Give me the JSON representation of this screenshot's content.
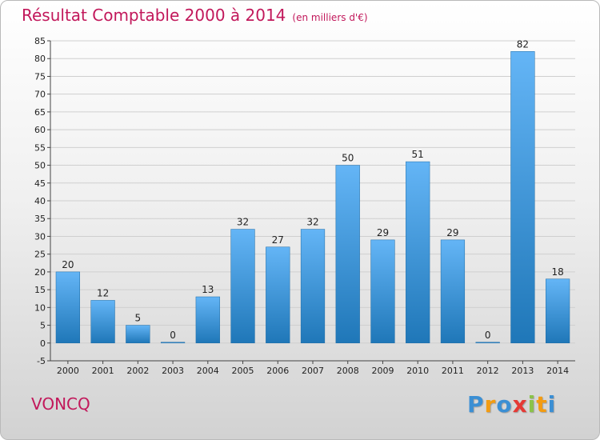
{
  "title": "Résultat Comptable 2000 à 2014",
  "subtitle": "(en milliers d'€)",
  "commune": "VONCQ",
  "logo": {
    "letters": [
      "P",
      "r",
      "o",
      "x",
      "i",
      "t",
      "i"
    ],
    "colors": [
      "#3b8fd4",
      "#f39c12",
      "#3b8fd4",
      "#e53935",
      "#8bc34a",
      "#f39c12",
      "#3b8fd4"
    ]
  },
  "colors": {
    "bar_top": "#64b5f6",
    "bar_bottom": "#1f77b8",
    "title": "#c2185b"
  },
  "chart_data": {
    "type": "bar",
    "categories": [
      "2000",
      "2001",
      "2002",
      "2003",
      "2004",
      "2005",
      "2006",
      "2007",
      "2008",
      "2009",
      "2010",
      "2011",
      "2012",
      "2013",
      "2014"
    ],
    "values": [
      20,
      12,
      5,
      0,
      13,
      32,
      27,
      32,
      50,
      29,
      51,
      29,
      0,
      82,
      18
    ],
    "ylim": [
      -5,
      85
    ],
    "yticks": [
      -5,
      0,
      5,
      10,
      15,
      20,
      25,
      30,
      35,
      40,
      45,
      50,
      55,
      60,
      65,
      70,
      75,
      80,
      85
    ],
    "grid": true,
    "legend": "none"
  }
}
